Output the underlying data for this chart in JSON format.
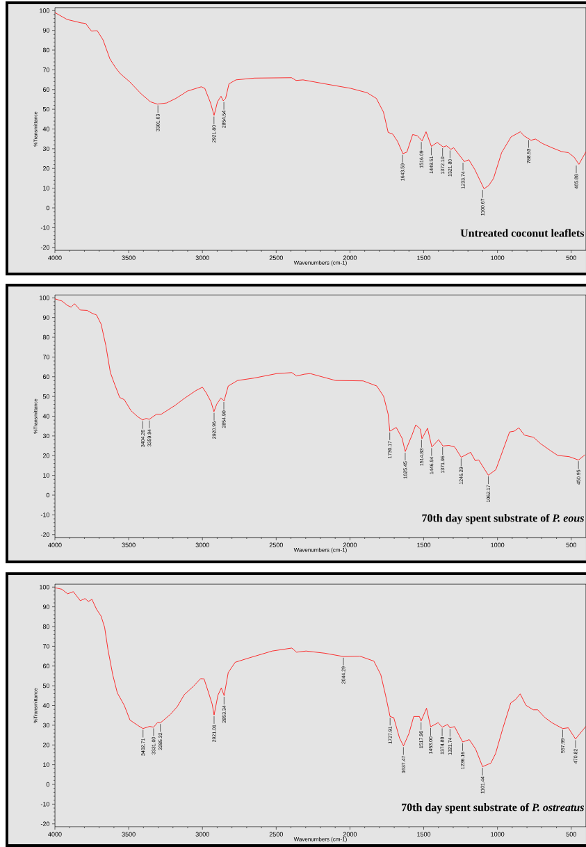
{
  "chart_data": [
    {
      "type": "line",
      "xlabel": "Wavenumbers (cm-1)",
      "ylabel": "%Transmittance",
      "xlim": [
        4000,
        400
      ],
      "ylim": [
        -21.5,
        101.5
      ],
      "xticks": [
        4000,
        3500,
        3000,
        2500,
        2000,
        1500,
        1000,
        500
      ],
      "yticks": [
        100,
        90,
        80,
        70,
        60,
        50,
        40,
        30,
        20,
        10,
        0,
        -10,
        -20
      ],
      "series": [
        {
          "color": "#ff0000",
          "x": [
            4000,
            3917,
            3823,
            3792,
            3752,
            3713,
            3674,
            3627,
            3588,
            3556,
            3494,
            3415,
            3353,
            3305,
            3243,
            3180,
            3102,
            3008,
            2984,
            2945,
            2921,
            2898,
            2874,
            2859,
            2843,
            2820,
            2773,
            2647,
            2396,
            2365,
            2318,
            2170,
            1995,
            1884,
            1821,
            1773,
            1741,
            1710,
            1678,
            1641,
            1614,
            1575,
            1543,
            1511,
            1484,
            1448,
            1408,
            1368,
            1345,
            1316,
            1297,
            1225,
            1194,
            1154,
            1091,
            1059,
            1027,
            972,
            908,
            845,
            821,
            773,
            742,
            694,
            630,
            567,
            519,
            480,
            448,
            400
          ],
          "values": [
            99,
            95.5,
            93.8,
            93.5,
            89.6,
            89.8,
            85.2,
            75.5,
            71,
            68,
            64,
            57.8,
            53.8,
            52.6,
            53.2,
            55.5,
            59.2,
            61.4,
            60.6,
            53.2,
            46.9,
            53.8,
            56.6,
            54.3,
            55.5,
            62.9,
            64.9,
            65.8,
            66,
            64.6,
            64.9,
            62.9,
            60.6,
            58.4,
            55.5,
            48.6,
            38.3,
            37.4,
            33.8,
            27.5,
            28.3,
            37.2,
            36.6,
            34,
            38.6,
            31.2,
            33.2,
            30.9,
            31.5,
            29.7,
            30.5,
            23.5,
            24.4,
            19.5,
            9.7,
            11.4,
            14.9,
            28,
            36,
            38.6,
            36.6,
            34.3,
            34.9,
            32.6,
            30.5,
            28.6,
            28,
            25.7,
            22.1,
            28.5
          ]
        }
      ],
      "annotations": [
        {
          "text": "3301.63",
          "x": 3301.63,
          "y": 52.6
        },
        {
          "text": "2921.80",
          "x": 2921.8,
          "y": 46.9
        },
        {
          "text": "2854.54",
          "x": 2854.54,
          "y": 54.3
        },
        {
          "text": "1643.59",
          "x": 1643.59,
          "y": 27.5
        },
        {
          "text": "1516.09",
          "x": 1516.09,
          "y": 34
        },
        {
          "text": "1448.51",
          "x": 1448.51,
          "y": 31.2
        },
        {
          "text": "1372.10",
          "x": 1372.1,
          "y": 30.9
        },
        {
          "text": "1321.80",
          "x": 1321.8,
          "y": 29.7
        },
        {
          "text": "1233.74",
          "x": 1233.74,
          "y": 23.5
        },
        {
          "text": "1100.67",
          "x": 1100.67,
          "y": 9.7
        },
        {
          "text": "788.53",
          "x": 788.53,
          "y": 35
        },
        {
          "text": "465.88",
          "x": 465.88,
          "y": 22.1
        },
        "Untreated coconut leaflets"
      ]
    },
    {
      "type": "line",
      "xlabel": "Wavenumbers (cm-1)",
      "ylabel": "%Transmittance",
      "xlim": [
        4000,
        400
      ],
      "ylim": [
        -21.5,
        101.5
      ],
      "xticks": [
        4000,
        3500,
        3000,
        2500,
        2000,
        1500,
        1000,
        500
      ],
      "yticks": [
        100,
        90,
        80,
        70,
        60,
        50,
        40,
        30,
        20,
        10,
        0,
        -10,
        -20
      ],
      "series": [
        {
          "color": "#ff0000",
          "x": [
            4000,
            3953,
            3914,
            3890,
            3867,
            3828,
            3781,
            3749,
            3718,
            3687,
            3655,
            3624,
            3593,
            3561,
            3530,
            3483,
            3436,
            3405,
            3381,
            3361,
            3311,
            3279,
            3185,
            3123,
            3044,
            3000,
            2974,
            2942,
            2922,
            2903,
            2875,
            2853,
            2825,
            2762,
            2652,
            2496,
            2394,
            2362,
            2308,
            2269,
            2098,
            1911,
            1818,
            1772,
            1741,
            1730,
            1686,
            1647,
            1625,
            1578,
            1554,
            1523,
            1512,
            1474,
            1445,
            1399,
            1370,
            1329,
            1290,
            1246,
            1182,
            1151,
            1127,
            1062,
            1011,
            918,
            887,
            855,
            817,
            755,
            708,
            638,
            591,
            514,
            451,
            407
          ],
          "values": [
            99.5,
            98.4,
            96.1,
            95.3,
            97,
            93.8,
            93.6,
            92.2,
            91.3,
            86.7,
            75.9,
            62.1,
            55.8,
            49.5,
            48.4,
            42.7,
            39.6,
            38.1,
            38.9,
            38.4,
            41,
            41,
            45.5,
            49,
            53,
            54.7,
            51.8,
            47.3,
            42.3,
            46.1,
            49.2,
            47.8,
            55.3,
            58.1,
            59.3,
            61.6,
            62.1,
            60.4,
            61.3,
            61.6,
            58.1,
            57.9,
            55.3,
            50.1,
            41,
            32.4,
            34.3,
            28.9,
            22.1,
            30.7,
            35.6,
            33.5,
            28.6,
            33.9,
            24.4,
            28.1,
            24.9,
            25.2,
            24.4,
            19.2,
            21.7,
            17.5,
            17.8,
            10.1,
            12.9,
            32,
            32.4,
            34.1,
            30.4,
            29.3,
            26.1,
            22.4,
            20.1,
            19.5,
            17.8,
            20.4
          ]
        }
      ],
      "annotations": [
        {
          "text": "3404.26",
          "x": 3404.26,
          "y": 38.1
        },
        {
          "text": "3359.94",
          "x": 3359.94,
          "y": 38.4
        },
        {
          "text": "2920.96",
          "x": 2920.96,
          "y": 42.3
        },
        {
          "text": "2854.90",
          "x": 2854.9,
          "y": 47.8
        },
        {
          "text": "1730.17",
          "x": 1730.17,
          "y": 32.4
        },
        {
          "text": "1625.45",
          "x": 1625.45,
          "y": 22.1
        },
        {
          "text": "1514.83",
          "x": 1514.83,
          "y": 28.6
        },
        {
          "text": "1446.94",
          "x": 1446.94,
          "y": 24.4
        },
        {
          "text": "1371.96",
          "x": 1371.96,
          "y": 24.9
        },
        {
          "text": "1246.29",
          "x": 1246.29,
          "y": 19.2
        },
        {
          "text": "1062.17",
          "x": 1062.17,
          "y": 10.1
        },
        {
          "text": "450.95",
          "x": 450.95,
          "y": 17.8
        },
        "70th day spent substrate of *P. eous*"
      ]
    },
    {
      "type": "line",
      "xlabel": "Wavenumbers (cm-1)",
      "ylabel": "%Transmittance",
      "xlim": [
        4000,
        400
      ],
      "ylim": [
        -21.5,
        101.5
      ],
      "xticks": [
        4000,
        3500,
        3000,
        2500,
        2000,
        1500,
        1000,
        500
      ],
      "yticks": [
        100,
        90,
        80,
        70,
        60,
        50,
        40,
        30,
        20,
        10,
        0,
        -10,
        -20
      ],
      "series": [
        {
          "color": "#ff0000",
          "x": [
            4000,
            3953,
            3914,
            3875,
            3828,
            3796,
            3773,
            3749,
            3718,
            3687,
            3663,
            3640,
            3608,
            3577,
            3530,
            3491,
            3436,
            3403,
            3358,
            3331,
            3303,
            3285,
            3217,
            3170,
            3123,
            3060,
            3013,
            2989,
            2958,
            2934,
            2921,
            2895,
            2872,
            2853,
            2825,
            2778,
            2684,
            2527,
            2394,
            2362,
            2298,
            2171,
            2044,
            1933,
            1838,
            1791,
            1759,
            1728,
            1703,
            1664,
            1637,
            1600,
            1568,
            1529,
            1518,
            1481,
            1453,
            1402,
            1375,
            1338,
            1322,
            1291,
            1236,
            1191,
            1148,
            1101,
            1045,
            1013,
            965,
            910,
            878,
            846,
            807,
            757,
            727,
            680,
            632,
            558,
            520,
            471,
            400
          ],
          "values": [
            99.7,
            98.9,
            96.6,
            97.7,
            93.1,
            94.2,
            92.7,
            93.8,
            88.8,
            85.3,
            79.6,
            68.2,
            55.6,
            46.4,
            40.1,
            32.6,
            29.8,
            28.3,
            29.4,
            29,
            31.5,
            31.2,
            35.5,
            39.5,
            45.5,
            49.8,
            53.6,
            53.5,
            46.4,
            40.7,
            35.2,
            45.2,
            48.9,
            45,
            56.7,
            61.9,
            64.1,
            67.6,
            69.1,
            67,
            67.6,
            66.5,
            64.8,
            65,
            62.5,
            55.6,
            45.3,
            34.4,
            33.8,
            23.5,
            19.5,
            25.8,
            34.4,
            34.4,
            32.1,
            38.6,
            29.2,
            31.3,
            29,
            30.4,
            28.7,
            29.3,
            21.5,
            22.7,
            17.9,
            9,
            10.8,
            15.6,
            28.1,
            41.3,
            43,
            45.9,
            40.1,
            37.8,
            37.8,
            34,
            31.3,
            28.3,
            28.7,
            23,
            29.5
          ]
        }
      ],
      "annotations": [
        {
          "text": "3402.71",
          "x": 3402.71,
          "y": 28.3
        },
        {
          "text": "3331.00",
          "x": 3331.0,
          "y": 29
        },
        {
          "text": "3285.32",
          "x": 3285.32,
          "y": 31.2
        },
        {
          "text": "2921.01",
          "x": 2921.01,
          "y": 35.2
        },
        {
          "text": "2853.34",
          "x": 2853.34,
          "y": 45
        },
        {
          "text": "2044.29",
          "x": 2044.29,
          "y": 64.8
        },
        {
          "text": "1727.91",
          "x": 1727.91,
          "y": 34.4
        },
        {
          "text": "1637.47",
          "x": 1637.47,
          "y": 19.5
        },
        {
          "text": "1517.96",
          "x": 1517.96,
          "y": 32.1
        },
        {
          "text": "1453.00",
          "x": 1453.0,
          "y": 29.2
        },
        {
          "text": "1374.88",
          "x": 1374.88,
          "y": 29
        },
        {
          "text": "1321.74",
          "x": 1321.74,
          "y": 28.7
        },
        {
          "text": "1236.16",
          "x": 1236.16,
          "y": 21.5
        },
        {
          "text": "1101.44",
          "x": 1101.44,
          "y": 9
        },
        {
          "text": "557.99",
          "x": 557.99,
          "y": 28.3
        },
        {
          "text": "470.82",
          "x": 470.82,
          "y": 23
        },
        "70th day spent substrate of *P. ostreatus*"
      ]
    }
  ]
}
